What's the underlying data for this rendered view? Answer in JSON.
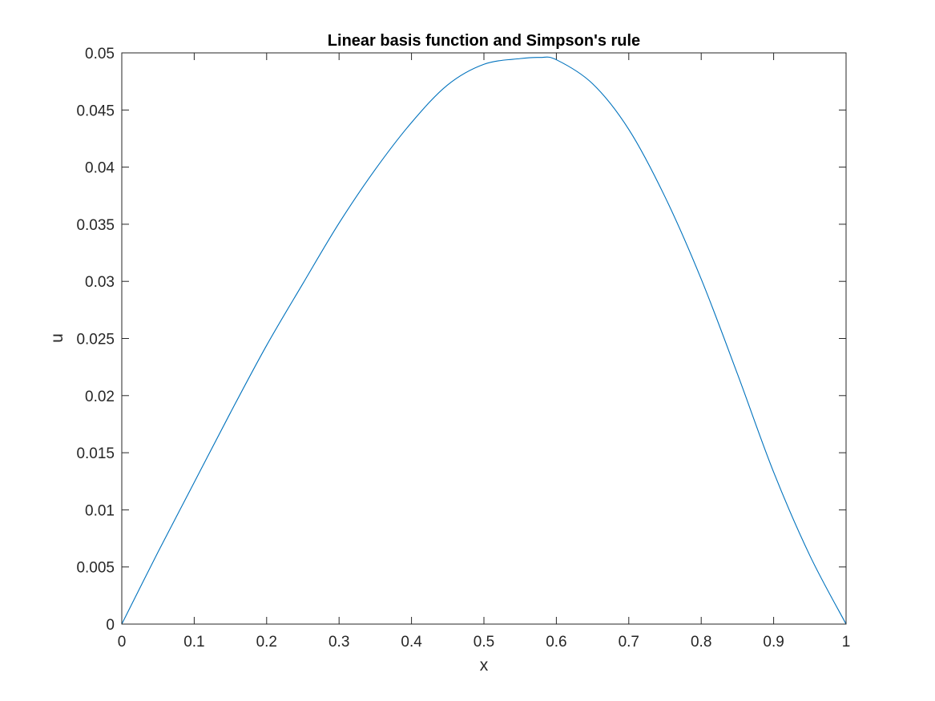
{
  "chart_data": {
    "type": "line",
    "title": "Linear basis function and Simpson's rule",
    "xlabel": "x",
    "ylabel": "u",
    "xlim": [
      0,
      1
    ],
    "ylim": [
      0,
      0.05
    ],
    "xticks": [
      0,
      0.1,
      0.2,
      0.3,
      0.4,
      0.5,
      0.6,
      0.7,
      0.8,
      0.9,
      1
    ],
    "xtick_labels": [
      "0",
      "0.1",
      "0.2",
      "0.3",
      "0.4",
      "0.5",
      "0.6",
      "0.7",
      "0.8",
      "0.9",
      "1"
    ],
    "yticks": [
      0,
      0.005,
      0.01,
      0.015,
      0.02,
      0.025,
      0.03,
      0.035,
      0.04,
      0.045,
      0.05
    ],
    "ytick_labels": [
      "0",
      "0.005",
      "0.01",
      "0.015",
      "0.02",
      "0.025",
      "0.03",
      "0.035",
      "0.04",
      "0.045",
      "0.05"
    ],
    "grid": false,
    "box": true,
    "colors": {
      "line": "#0072BD",
      "axes": "#262626",
      "background": "#ffffff"
    },
    "series": [
      {
        "color": "#0072BD",
        "x": [
          0,
          0.05,
          0.1,
          0.15,
          0.2,
          0.25,
          0.3,
          0.35,
          0.4,
          0.45,
          0.5,
          0.55,
          0.577,
          0.6,
          0.65,
          0.7,
          0.75,
          0.8,
          0.85,
          0.9,
          0.95,
          1
        ],
        "y": [
          0,
          0.0063,
          0.0124,
          0.0185,
          0.0244,
          0.0298,
          0.0351,
          0.0398,
          0.0439,
          0.0472,
          0.049,
          0.0495,
          0.0496,
          0.0494,
          0.0473,
          0.0433,
          0.0374,
          0.0302,
          0.0219,
          0.0133,
          0.006,
          0
        ]
      }
    ]
  }
}
